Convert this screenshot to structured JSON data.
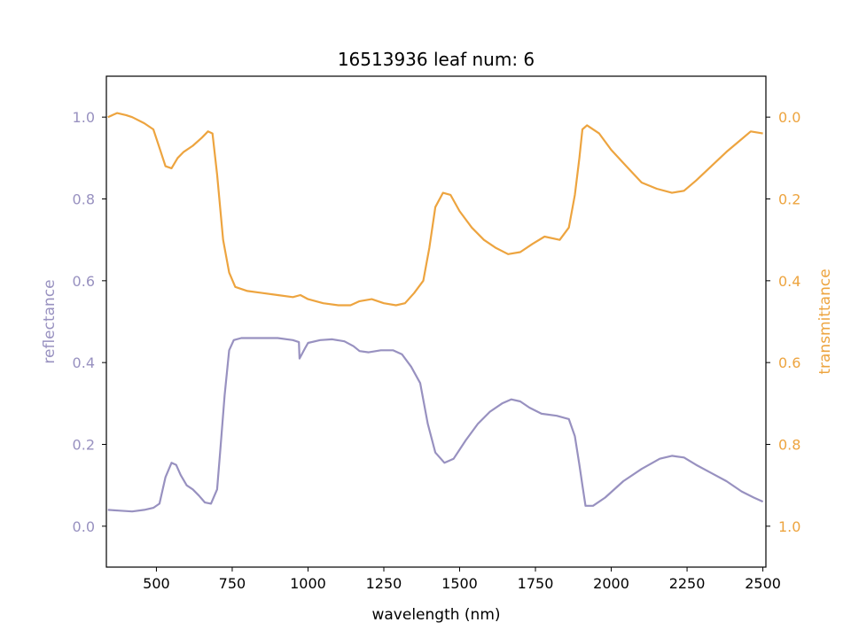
{
  "chart_data": {
    "type": "line",
    "title": "16513936 leaf num: 6",
    "xlabel": "wavelength (nm)",
    "ylabel_left": "reflectance",
    "ylabel_right": "transmittance",
    "xlim": [
      335,
      2510
    ],
    "ylim_left": [
      -0.1,
      1.1
    ],
    "ylim_right": [
      1.1,
      -0.1
    ],
    "right_axis_inverted": true,
    "x_ticks": [
      500,
      750,
      1000,
      1250,
      1500,
      1750,
      2000,
      2250,
      2500
    ],
    "y_ticks_left": [
      0.0,
      0.2,
      0.4,
      0.6,
      0.8,
      1.0
    ],
    "y_ticks_right": [
      0.0,
      0.2,
      0.4,
      0.6,
      0.8,
      1.0
    ],
    "grid": false,
    "legend": "none",
    "colors": {
      "reflectance": "#9891c0",
      "transmittance": "#eda43f"
    },
    "series": [
      {
        "name": "reflectance",
        "axis": "left",
        "points": [
          [
            340,
            0.04
          ],
          [
            380,
            0.038
          ],
          [
            420,
            0.036
          ],
          [
            460,
            0.04
          ],
          [
            490,
            0.045
          ],
          [
            510,
            0.055
          ],
          [
            530,
            0.12
          ],
          [
            550,
            0.155
          ],
          [
            565,
            0.15
          ],
          [
            580,
            0.125
          ],
          [
            600,
            0.1
          ],
          [
            620,
            0.09
          ],
          [
            640,
            0.075
          ],
          [
            660,
            0.058
          ],
          [
            680,
            0.055
          ],
          [
            700,
            0.09
          ],
          [
            710,
            0.18
          ],
          [
            725,
            0.32
          ],
          [
            740,
            0.43
          ],
          [
            755,
            0.455
          ],
          [
            780,
            0.46
          ],
          [
            850,
            0.46
          ],
          [
            900,
            0.46
          ],
          [
            950,
            0.455
          ],
          [
            970,
            0.45
          ],
          [
            972,
            0.41
          ],
          [
            990,
            0.435
          ],
          [
            1000,
            0.448
          ],
          [
            1040,
            0.455
          ],
          [
            1080,
            0.457
          ],
          [
            1120,
            0.452
          ],
          [
            1150,
            0.44
          ],
          [
            1170,
            0.428
          ],
          [
            1200,
            0.425
          ],
          [
            1240,
            0.43
          ],
          [
            1280,
            0.43
          ],
          [
            1310,
            0.42
          ],
          [
            1340,
            0.39
          ],
          [
            1370,
            0.35
          ],
          [
            1395,
            0.25
          ],
          [
            1420,
            0.18
          ],
          [
            1450,
            0.155
          ],
          [
            1480,
            0.165
          ],
          [
            1520,
            0.21
          ],
          [
            1560,
            0.25
          ],
          [
            1600,
            0.28
          ],
          [
            1640,
            0.3
          ],
          [
            1670,
            0.31
          ],
          [
            1700,
            0.305
          ],
          [
            1730,
            0.29
          ],
          [
            1770,
            0.275
          ],
          [
            1820,
            0.27
          ],
          [
            1860,
            0.262
          ],
          [
            1880,
            0.22
          ],
          [
            1895,
            0.15
          ],
          [
            1905,
            0.1
          ],
          [
            1915,
            0.05
          ],
          [
            1940,
            0.05
          ],
          [
            1980,
            0.07
          ],
          [
            2040,
            0.11
          ],
          [
            2100,
            0.14
          ],
          [
            2160,
            0.165
          ],
          [
            2200,
            0.172
          ],
          [
            2240,
            0.168
          ],
          [
            2280,
            0.15
          ],
          [
            2330,
            0.13
          ],
          [
            2380,
            0.11
          ],
          [
            2430,
            0.085
          ],
          [
            2470,
            0.07
          ],
          [
            2500,
            0.06
          ]
        ]
      },
      {
        "name": "transmittance",
        "axis": "right",
        "points": [
          [
            340,
            0.0
          ],
          [
            370,
            -0.01
          ],
          [
            400,
            -0.005
          ],
          [
            420,
            0.0
          ],
          [
            460,
            0.015
          ],
          [
            490,
            0.03
          ],
          [
            510,
            0.075
          ],
          [
            530,
            0.12
          ],
          [
            550,
            0.125
          ],
          [
            570,
            0.1
          ],
          [
            590,
            0.085
          ],
          [
            620,
            0.07
          ],
          [
            650,
            0.05
          ],
          [
            670,
            0.035
          ],
          [
            685,
            0.04
          ],
          [
            700,
            0.14
          ],
          [
            720,
            0.3
          ],
          [
            740,
            0.38
          ],
          [
            760,
            0.415
          ],
          [
            800,
            0.425
          ],
          [
            850,
            0.43
          ],
          [
            900,
            0.435
          ],
          [
            950,
            0.44
          ],
          [
            975,
            0.435
          ],
          [
            1000,
            0.445
          ],
          [
            1050,
            0.455
          ],
          [
            1100,
            0.46
          ],
          [
            1140,
            0.46
          ],
          [
            1170,
            0.45
          ],
          [
            1210,
            0.445
          ],
          [
            1250,
            0.455
          ],
          [
            1290,
            0.46
          ],
          [
            1320,
            0.455
          ],
          [
            1350,
            0.43
          ],
          [
            1380,
            0.4
          ],
          [
            1400,
            0.32
          ],
          [
            1420,
            0.22
          ],
          [
            1445,
            0.185
          ],
          [
            1470,
            0.19
          ],
          [
            1500,
            0.23
          ],
          [
            1540,
            0.27
          ],
          [
            1580,
            0.3
          ],
          [
            1620,
            0.32
          ],
          [
            1660,
            0.335
          ],
          [
            1700,
            0.33
          ],
          [
            1740,
            0.31
          ],
          [
            1780,
            0.292
          ],
          [
            1830,
            0.3
          ],
          [
            1860,
            0.27
          ],
          [
            1880,
            0.19
          ],
          [
            1895,
            0.1
          ],
          [
            1905,
            0.03
          ],
          [
            1920,
            0.02
          ],
          [
            1960,
            0.04
          ],
          [
            2000,
            0.08
          ],
          [
            2050,
            0.12
          ],
          [
            2100,
            0.16
          ],
          [
            2150,
            0.175
          ],
          [
            2200,
            0.185
          ],
          [
            2240,
            0.18
          ],
          [
            2280,
            0.155
          ],
          [
            2330,
            0.12
          ],
          [
            2380,
            0.085
          ],
          [
            2420,
            0.06
          ],
          [
            2460,
            0.035
          ],
          [
            2500,
            0.04
          ]
        ]
      }
    ]
  }
}
